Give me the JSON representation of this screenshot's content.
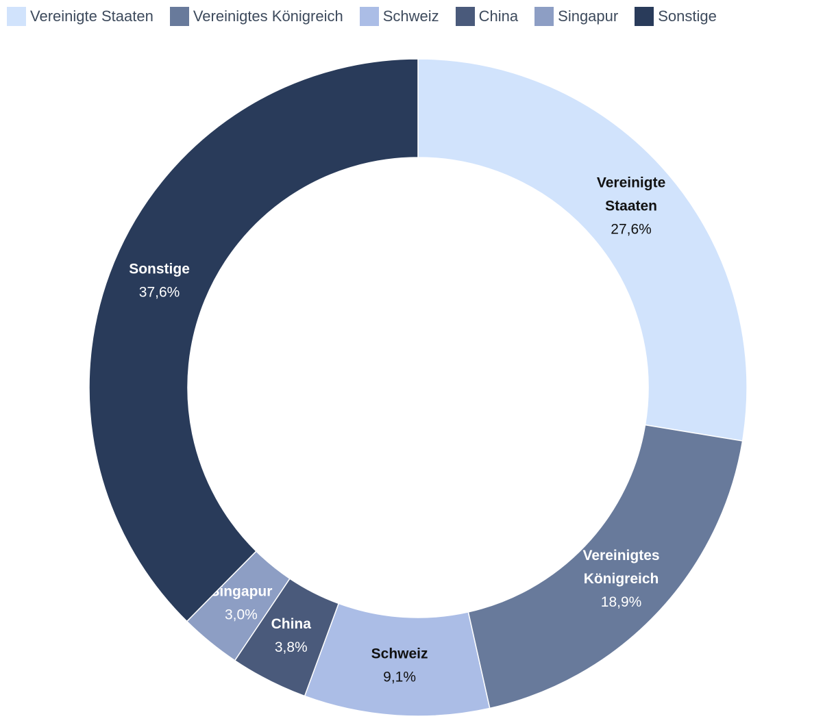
{
  "chart_data": {
    "type": "pie",
    "style": "donut",
    "title": "",
    "categories": [
      "Vereinigte Staaten",
      "Vereinigtes Königreich",
      "Schweiz",
      "China",
      "Singapur",
      "Sonstige"
    ],
    "values": [
      27.6,
      18.9,
      9.1,
      3.8,
      3.0,
      37.6
    ],
    "value_labels": [
      "27,6%",
      "18,9%",
      "9,1%",
      "3,8%",
      "3,0%",
      "37,6%"
    ],
    "slice_labels": [
      [
        "Vereinigte",
        "Staaten"
      ],
      [
        "Vereinigtes",
        "Königreich"
      ],
      [
        "Schweiz"
      ],
      [
        "China"
      ],
      [
        "Singapur"
      ],
      [
        "Sonstige"
      ]
    ],
    "colors": [
      "#d1e3fc",
      "#687a9b",
      "#abbde6",
      "#4a5a7b",
      "#8d9ec4",
      "#293b5a"
    ],
    "label_colors": [
      "#111111",
      "#ffffff",
      "#111111",
      "#ffffff",
      "#ffffff",
      "#ffffff"
    ],
    "legend_position": "top-left"
  }
}
